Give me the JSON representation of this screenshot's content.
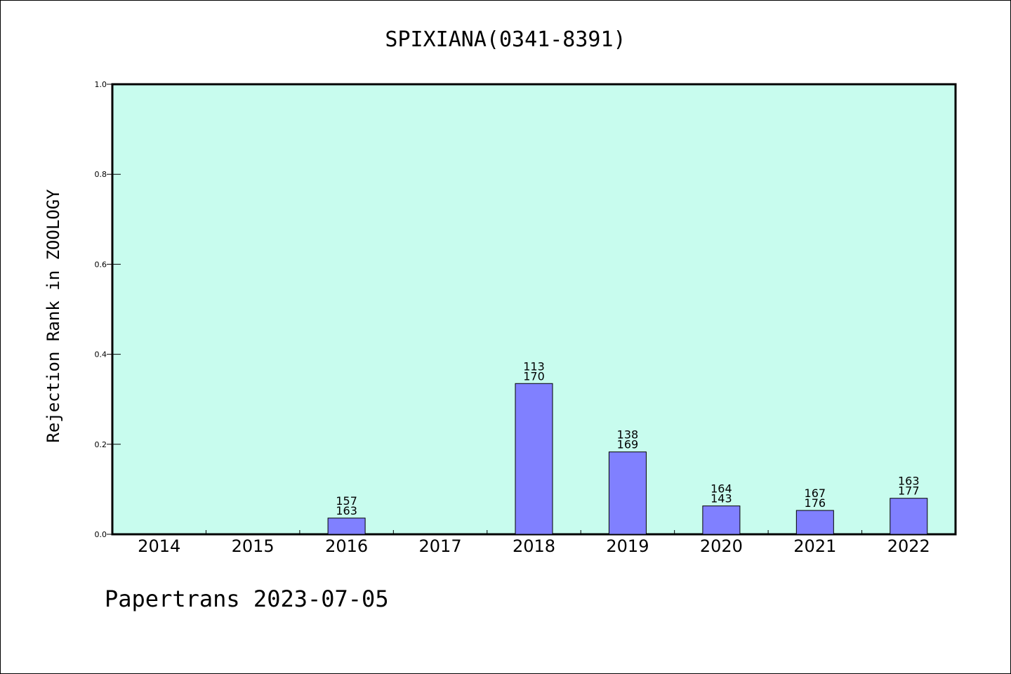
{
  "chart_data": {
    "type": "bar",
    "title": "SPIXIANA(0341-8391)",
    "xlabel": "",
    "ylabel": "Rejection Rank in ZOOLOGY",
    "ylim": [
      0,
      1.0
    ],
    "yticks": [
      "0.0",
      "0.2",
      "0.4",
      "0.6",
      "0.8",
      "1.0"
    ],
    "ytick_values": [
      0,
      0.2,
      0.4,
      0.6,
      0.8,
      1.0
    ],
    "categories": [
      "2014",
      "2015",
      "2016",
      "2017",
      "2018",
      "2019",
      "2020",
      "2021",
      "2022"
    ],
    "values": [
      0,
      0,
      0.036,
      0,
      0.335,
      0.183,
      0.063,
      0.053,
      0.08
    ],
    "labels_top": [
      "",
      "",
      "157",
      "",
      "113",
      "138",
      "164",
      "167",
      "163"
    ],
    "labels_bottom": [
      "",
      "",
      "163",
      "",
      "170",
      "169",
      "143",
      "176",
      "177"
    ],
    "grid": false,
    "bar_color": "#8080ff",
    "plot_background": "#c8fcee"
  },
  "footer": {
    "text": "Papertrans 2023-07-05"
  }
}
